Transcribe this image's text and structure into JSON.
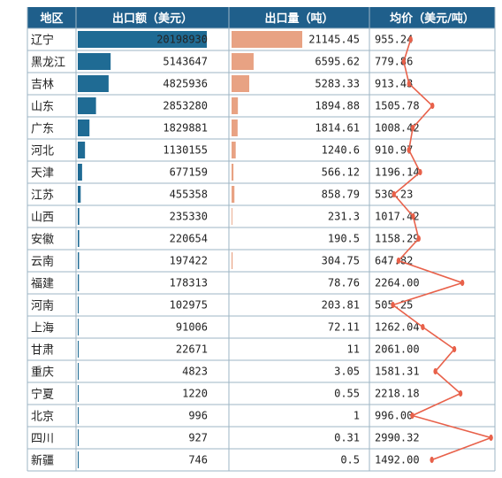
{
  "chart_data": {
    "type": "table",
    "headers": {
      "region": "地区",
      "export_value": "出口额（美元）",
      "export_volume": "出口量（吨）",
      "avg_price": "均价（美元/吨）"
    },
    "rows": [
      {
        "region": "辽宁",
        "value": 20198930,
        "value_text": "20198930",
        "volume": 21145.45,
        "volume_text": "21145.45",
        "price": 955.24,
        "price_text": "955.24"
      },
      {
        "region": "黑龙江",
        "value": 5143647,
        "value_text": "5143647",
        "volume": 6595.62,
        "volume_text": "6595.62",
        "price": 779.86,
        "price_text": "779.86"
      },
      {
        "region": "吉林",
        "value": 4825936,
        "value_text": "4825936",
        "volume": 5283.33,
        "volume_text": "5283.33",
        "price": 913.43,
        "price_text": "913.43"
      },
      {
        "region": "山东",
        "value": 2853280,
        "value_text": "2853280",
        "volume": 1894.88,
        "volume_text": "1894.88",
        "price": 1505.78,
        "price_text": "1505.78"
      },
      {
        "region": "广东",
        "value": 1829881,
        "value_text": "1829881",
        "volume": 1814.61,
        "volume_text": "1814.61",
        "price": 1008.42,
        "price_text": "1008.42"
      },
      {
        "region": "河北",
        "value": 1130155,
        "value_text": "1130155",
        "volume": 1240.6,
        "volume_text": "1240.6",
        "price": 910.97,
        "price_text": "910.97"
      },
      {
        "region": "天津",
        "value": 677159,
        "value_text": "677159",
        "volume": 566.12,
        "volume_text": "566.12",
        "price": 1196.14,
        "price_text": "1196.14"
      },
      {
        "region": "江苏",
        "value": 455358,
        "value_text": "455358",
        "volume": 858.79,
        "volume_text": "858.79",
        "price": 530.23,
        "price_text": "530.23"
      },
      {
        "region": "山西",
        "value": 235330,
        "value_text": "235330",
        "volume": 231.3,
        "volume_text": "231.3",
        "price": 1017.42,
        "price_text": "1017.42"
      },
      {
        "region": "安徽",
        "value": 220654,
        "value_text": "220654",
        "volume": 190.5,
        "volume_text": "190.5",
        "price": 1158.29,
        "price_text": "1158.29"
      },
      {
        "region": "云南",
        "value": 197422,
        "value_text": "197422",
        "volume": 304.75,
        "volume_text": "304.75",
        "price": 647.82,
        "price_text": "647.82"
      },
      {
        "region": "福建",
        "value": 178313,
        "value_text": "178313",
        "volume": 78.76,
        "volume_text": "78.76",
        "price": 2264.0,
        "price_text": "2264.00"
      },
      {
        "region": "河南",
        "value": 102975,
        "value_text": "102975",
        "volume": 203.81,
        "volume_text": "203.81",
        "price": 505.25,
        "price_text": "505.25"
      },
      {
        "region": "上海",
        "value": 91006,
        "value_text": "91006",
        "volume": 72.11,
        "volume_text": "72.11",
        "price": 1262.04,
        "price_text": "1262.04"
      },
      {
        "region": "甘肃",
        "value": 22671,
        "value_text": "22671",
        "volume": 11,
        "volume_text": "11",
        "price": 2061.0,
        "price_text": "2061.00"
      },
      {
        "region": "重庆",
        "value": 4823,
        "value_text": "4823",
        "volume": 3.05,
        "volume_text": "3.05",
        "price": 1581.31,
        "price_text": "1581.31"
      },
      {
        "region": "宁夏",
        "value": 1220,
        "value_text": "1220",
        "volume": 0.55,
        "volume_text": "0.55",
        "price": 2218.18,
        "price_text": "2218.18"
      },
      {
        "region": "北京",
        "value": 996,
        "value_text": "996",
        "volume": 1,
        "volume_text": "1",
        "price": 996.0,
        "price_text": "996.00"
      },
      {
        "region": "四川",
        "value": 927,
        "value_text": "927",
        "volume": 0.31,
        "volume_text": "0.31",
        "price": 2990.32,
        "price_text": "2990.32"
      },
      {
        "region": "新疆",
        "value": 746,
        "value_text": "746",
        "volume": 0.5,
        "volume_text": "0.5",
        "price": 1492.0,
        "price_text": "1492.00"
      }
    ],
    "colors": {
      "header_bg": "#1f5f8b",
      "value_bar": "#1f6b94",
      "volume_bar": "#e8a283",
      "price_line": "#e8614a",
      "grid": "#9eb5c4"
    }
  }
}
